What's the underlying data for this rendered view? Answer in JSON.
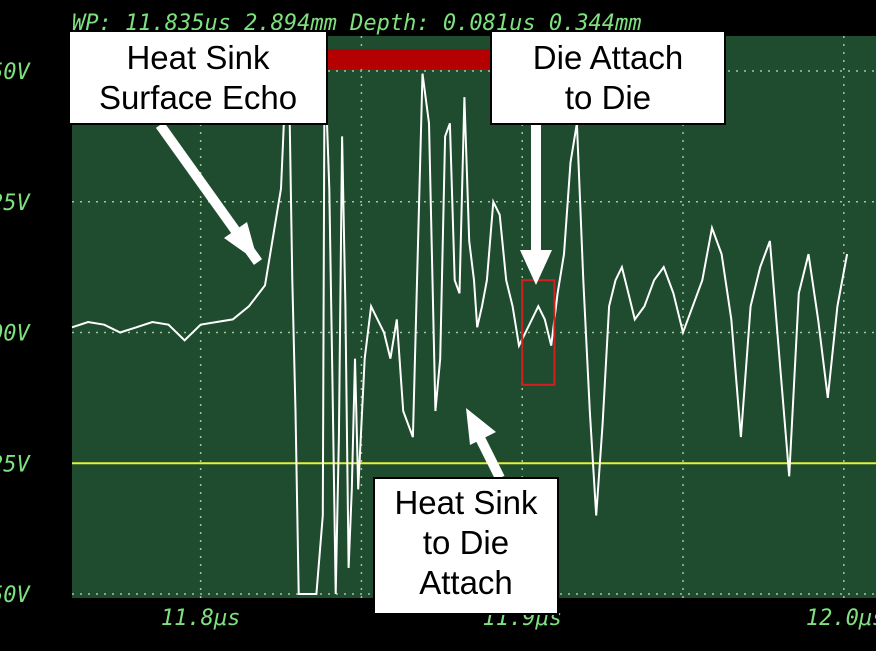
{
  "header": {
    "readout": "WP: 11.835us  2.894mm  Depth: 0.081us  0.344mm"
  },
  "colors": {
    "plot_bg": "#1f4b2e",
    "trace": "#ffffff",
    "grid": "#9fc79f",
    "label": "#7ee07e",
    "threshold": "#e6f23a",
    "gate": "#b40000",
    "marker": "#d02020"
  },
  "chart_data": {
    "type": "line",
    "title": "",
    "xlabel": "",
    "ylabel": "",
    "x_ticks": [
      "11.8μs",
      "11.9μs",
      "12.0μs"
    ],
    "y_ticks": [
      "50V",
      "25V",
      "00V",
      "25V",
      "50V"
    ],
    "xlim": [
      11.76,
      12.01
    ],
    "ylim": [
      -1.0,
      1.0
    ],
    "threshold": -0.5,
    "gate": [
      11.835,
      11.895
    ],
    "marker_x": [
      11.9,
      11.91
    ],
    "series": [
      {
        "x": [
          11.76,
          11.765,
          11.77,
          11.775,
          11.78,
          11.785,
          11.79,
          11.795,
          11.8,
          11.805,
          11.81,
          11.815,
          11.82,
          11.825,
          11.8265,
          11.8275,
          11.8285,
          11.8295,
          11.8305,
          11.831,
          11.832,
          11.833,
          11.836,
          11.838,
          11.8385,
          11.839,
          11.84,
          11.841,
          11.842,
          11.843,
          11.844,
          11.845,
          11.846,
          11.847,
          11.848,
          11.849,
          11.851,
          11.853,
          11.855,
          11.857,
          11.859,
          11.861,
          11.863,
          11.866,
          11.869,
          11.871,
          11.873,
          11.8745,
          11.876,
          11.8775,
          11.879,
          11.8805,
          11.882,
          11.8835,
          11.885,
          11.886,
          11.8875,
          11.889,
          11.891,
          11.893,
          11.895,
          11.897,
          11.899,
          11.901,
          11.903,
          11.905,
          11.907,
          11.909,
          11.911,
          11.913,
          11.915,
          11.917,
          11.919,
          11.921,
          11.923,
          11.925,
          11.927,
          11.929,
          11.931,
          11.933,
          11.935,
          11.938,
          11.941,
          11.944,
          11.947,
          11.95,
          11.953,
          11.956,
          11.959,
          11.962,
          11.965,
          11.968,
          11.971,
          11.974,
          11.977,
          11.98,
          11.983,
          11.986,
          11.989,
          11.992,
          11.995,
          11.998,
          12.001
        ],
        "y": [
          0.02,
          0.04,
          0.03,
          0.0,
          0.02,
          0.04,
          0.03,
          -0.03,
          0.03,
          0.04,
          0.05,
          0.1,
          0.18,
          0.55,
          0.98,
          0.95,
          0.2,
          -0.3,
          -1.0,
          -1.0,
          -1.0,
          -1.0,
          -1.0,
          -0.7,
          0.98,
          0.9,
          0.55,
          -0.2,
          -1.0,
          -0.4,
          0.75,
          0.1,
          -0.9,
          -0.6,
          -0.1,
          -0.6,
          -0.1,
          0.1,
          0.05,
          0.0,
          -0.1,
          0.05,
          -0.3,
          -0.4,
          0.99,
          0.8,
          -0.3,
          -0.1,
          0.75,
          0.8,
          0.2,
          0.15,
          0.9,
          0.35,
          0.2,
          0.02,
          0.1,
          0.2,
          0.5,
          0.45,
          0.2,
          0.1,
          -0.05,
          0.0,
          0.05,
          0.1,
          0.05,
          -0.05,
          0.15,
          0.3,
          0.65,
          0.8,
          0.2,
          -0.3,
          -0.7,
          -0.35,
          0.1,
          0.2,
          0.25,
          0.15,
          0.05,
          0.1,
          0.2,
          0.25,
          0.15,
          0.0,
          0.1,
          0.2,
          0.4,
          0.3,
          0.05,
          -0.4,
          0.1,
          0.25,
          0.35,
          -0.1,
          -0.55,
          0.15,
          0.3,
          0.05,
          -0.25,
          0.1,
          0.3
        ]
      }
    ]
  },
  "callouts": {
    "heat_sink_surface": [
      "Heat Sink",
      "Surface Echo"
    ],
    "die_attach_to_die": [
      "Die Attach",
      "to Die"
    ],
    "heat_sink_to_die_attach": [
      "Heat Sink",
      "to Die",
      "Attach"
    ]
  }
}
